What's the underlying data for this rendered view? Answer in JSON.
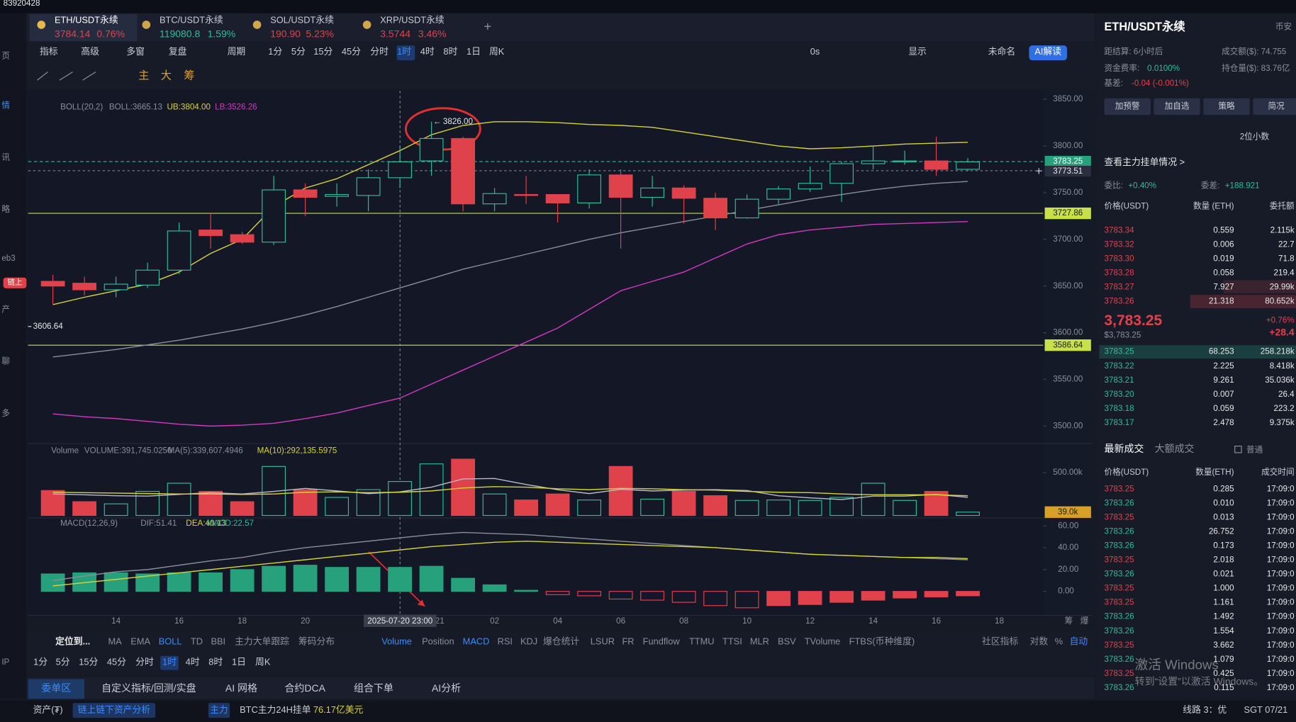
{
  "top_bar": {
    "account": "83920428"
  },
  "sidebar": [
    "页",
    "情",
    "讯",
    "略",
    "eb3",
    "产",
    "聊",
    "多",
    "IP"
  ],
  "sidebar_badge": "链上",
  "tabs": [
    {
      "name": "ETH/USDT永续",
      "price": "3784.14",
      "change": "0.76%"
    },
    {
      "name": "BTC/USDT永续",
      "price": "119080.8",
      "change": "1.59%"
    },
    {
      "name": "SOL/USDT永续",
      "price": "190.90",
      "change": "5.23%"
    },
    {
      "name": "XRP/USDT永续",
      "price": "3.5744",
      "change": "3.46%"
    }
  ],
  "toolbar": {
    "items": [
      "指标",
      "高级",
      "多窗",
      "复盘",
      "周期",
      "1分",
      "5分",
      "15分",
      "45分",
      "分时",
      "1时",
      "4时",
      "8时",
      "1日",
      "周K"
    ],
    "right": [
      "0s",
      "显示",
      "未命名",
      "AI解读"
    ]
  },
  "draw_tools": [
    "主",
    "大",
    "筹"
  ],
  "chart": {
    "type": "candlestick",
    "boll_label": {
      "name": "BOLL(20,2)",
      "mid": "BOLL:3665.13",
      "ub": "UB:3804.00",
      "lb": "LB:3526.26"
    },
    "volume_label": {
      "name": "Volume",
      "volume": "VOLUME:391,745.0250",
      "ma5": "MA(5):339,607.4946",
      "ma10": "MA(10):292,135.5975"
    },
    "macd_label": {
      "name": "MACD(12,26,9)",
      "dif": "DIF:51.41",
      "dea": "DEA:40.13",
      "macd": "MACD:22.57"
    },
    "categories": [
      null,
      null,
      "14",
      null,
      "16",
      null,
      "18",
      null,
      "20",
      null,
      null,
      null,
      "21",
      null,
      "02",
      null,
      "04",
      null,
      "06",
      null,
      "08",
      null,
      "10",
      null,
      "12",
      null,
      "14",
      null,
      "16",
      null,
      "18"
    ],
    "crosshair": "2025-07-20 23:00",
    "open": [
      3655,
      3653,
      3646,
      3651,
      3667,
      3710,
      3705,
      3697,
      3753,
      3746,
      3747,
      3766,
      3784,
      3808,
      3738,
      3748,
      3748,
      3739,
      3769,
      3745,
      3755,
      3744,
      3723,
      3743,
      3754,
      3760,
      3781,
      3783,
      3784,
      3775,
      null
    ],
    "high": [
      3662,
      3660,
      3660,
      3675,
      3718,
      3728,
      3708,
      3768,
      3760,
      3760,
      3775,
      3800,
      3826,
      3810,
      3755,
      3768,
      3748,
      3775,
      3775,
      3768,
      3758,
      3750,
      3748,
      3757,
      3778,
      3783,
      3800,
      3795,
      3810,
      3787,
      null
    ],
    "low": [
      3630,
      3640,
      3638,
      3648,
      3663,
      3690,
      3695,
      3694,
      3725,
      3735,
      3730,
      3755,
      3768,
      3730,
      3730,
      3738,
      3718,
      3733,
      3690,
      3735,
      3717,
      3710,
      3722,
      3738,
      3751,
      3740,
      3775,
      3780,
      3768,
      3773,
      null
    ],
    "close": [
      3650,
      3646,
      3652,
      3667,
      3709,
      3704,
      3697,
      3753,
      3745,
      3748,
      3766,
      3783,
      3808,
      3738,
      3749,
      3747,
      3739,
      3769,
      3745,
      3755,
      3744,
      3723,
      3743,
      3754,
      3760,
      3781,
      3784,
      3784,
      3775,
      3783,
      null
    ],
    "up_color": "#2ebd9b",
    "down_color": "#e0424b",
    "boll": [
      {
        "name": "UB",
        "color": "#d8d23a",
        "values": [
          3630,
          3638,
          3645,
          3652,
          3665,
          3685,
          3700,
          3735,
          3755,
          3765,
          3780,
          3795,
          3812,
          3822,
          3826,
          3826,
          3825,
          3823,
          3822,
          3820,
          3815,
          3810,
          3805,
          3800,
          3797,
          3798,
          3800,
          3802,
          3803,
          3804,
          null
        ]
      },
      {
        "name": "BOLL",
        "color": "#8a8f9c",
        "values": [
          3574,
          3578,
          3582,
          3587,
          3592,
          3598,
          3604,
          3611,
          3619,
          3628,
          3638,
          3648,
          3658,
          3668,
          3676,
          3684,
          3692,
          3700,
          3707,
          3713,
          3719,
          3725,
          3731,
          3737,
          3743,
          3748,
          3753,
          3757,
          3760,
          3762,
          null
        ]
      },
      {
        "name": "LB",
        "color": "#d23ac0",
        "values": [
          3513,
          3510,
          3508,
          3505,
          3502,
          3500,
          3501,
          3503,
          3508,
          3514,
          3522,
          3530,
          3545,
          3560,
          3575,
          3590,
          3605,
          3625,
          3645,
          3655,
          3665,
          3680,
          3695,
          3705,
          3710,
          3713,
          3716,
          3717,
          3718,
          3719,
          null
        ]
      }
    ],
    "ylim": [
      3483,
      3859
    ],
    "yticks": [
      {
        "value": 3850,
        "label": "3850.00"
      },
      {
        "value": 3800,
        "label": "3800.00"
      },
      {
        "value": 3750,
        "label": "3750.00"
      },
      {
        "value": 3700,
        "label": "3700.00"
      },
      {
        "value": 3650,
        "label": "3650.00"
      },
      {
        "value": 3600,
        "label": "3600.00"
      },
      {
        "value": 3550,
        "label": "3550.00"
      },
      {
        "value": 3500,
        "label": "3500.00"
      }
    ],
    "last_price": {
      "value": 3783.25,
      "label": "3783.25"
    },
    "cursor_price": {
      "value": 3773.51,
      "label": "3773.51"
    },
    "price_lines": [
      {
        "value": 3727.86,
        "label": "3727.86"
      },
      {
        "value": 3586.64,
        "label": "3586.64"
      }
    ],
    "high_marker": {
      "value": 3826,
      "label": "3826.00"
    },
    "low_marker": {
      "value": 3606.64,
      "label": "3606.64"
    },
    "volume": [
      290000,
      160000,
      135000,
      280000,
      375000,
      280000,
      160000,
      570000,
      300000,
      210000,
      300000,
      395000,
      600000,
      655000,
      250000,
      180000,
      250000,
      180000,
      570000,
      190000,
      280000,
      230000,
      175000,
      180000,
      175000,
      210000,
      375000,
      175000,
      280000,
      39000,
      null
    ],
    "volume_ma": [
      {
        "name": "MA(5)",
        "color": "#b8bcc6",
        "values": [
          250000,
          240000,
          230000,
          225000,
          245000,
          265000,
          250000,
          280000,
          315000,
          285000,
          255000,
          275000,
          330000,
          425000,
          430000,
          360000,
          300000,
          255000,
          305000,
          285000,
          295000,
          300000,
          290000,
          230000,
          205000,
          185000,
          225000,
          225000,
          245000,
          210000,
          null
        ]
      },
      {
        "name": "MA(10)",
        "color": "#d8d23a",
        "values": [
          270000,
          265000,
          260000,
          255000,
          250000,
          250000,
          245000,
          250000,
          270000,
          275000,
          265000,
          270000,
          285000,
          320000,
          335000,
          330000,
          310000,
          300000,
          315000,
          310000,
          300000,
          295000,
          280000,
          270000,
          265000,
          250000,
          240000,
          240000,
          240000,
          230000,
          null
        ]
      }
    ],
    "vlim": [
      0,
      807000
    ],
    "vticks": [
      {
        "value": 500000,
        "label": "500.00k"
      }
    ],
    "volume_tag": {
      "value": 39000,
      "label": "39.0k"
    },
    "macd": [
      16,
      17,
      17,
      16,
      17,
      17,
      20,
      23,
      24,
      22,
      22,
      22,
      23,
      12,
      6,
      1,
      -3,
      -4,
      -7,
      -8,
      -10,
      -13,
      -15,
      -13,
      -12,
      -10,
      -8,
      -6,
      -5,
      -4,
      null
    ],
    "macd_lines": [
      {
        "name": "DIF",
        "color": "#8a8f9c",
        "values": [
          10,
          14,
          18,
          20,
          24,
          28,
          31,
          36,
          40,
          43,
          46,
          49,
          52,
          54,
          53,
          52,
          50,
          48,
          46,
          44,
          42,
          40,
          38,
          36,
          34,
          33,
          32,
          31,
          30,
          29,
          null
        ]
      },
      {
        "name": "DEA",
        "color": "#d8d23a",
        "values": [
          5,
          8,
          11,
          14,
          17,
          20,
          23,
          26,
          29,
          32,
          35,
          38,
          41,
          43,
          45,
          46,
          45,
          44,
          43,
          42,
          41,
          40,
          38,
          36,
          34,
          33,
          32,
          31,
          31,
          30,
          null
        ]
      }
    ],
    "mlim": [
      -22,
      65
    ],
    "mticks": [
      {
        "value": 60,
        "label": "60.00"
      },
      {
        "value": 40,
        "label": "40.00"
      },
      {
        "value": 20,
        "label": "20.00"
      },
      {
        "value": 0,
        "label": "0.00"
      }
    ],
    "axis_corner": [
      "筹",
      "爆"
    ]
  },
  "indicator_bar": {
    "locate": "定位到...",
    "main": [
      "MA",
      "EMA",
      "BOLL",
      "TD",
      "BBI",
      "主力大单跟踪",
      "筹码分布"
    ],
    "sub": [
      "Volume",
      "Position",
      "MACD",
      "RSI",
      "KDJ",
      "爆仓统计",
      "LSUR",
      "FR",
      "Fundflow",
      "TTMU",
      "TTSI",
      "MLR",
      "BSV",
      "TVolume",
      "FTBS(币种维度)"
    ],
    "right": [
      "社区指标",
      "对数",
      "%",
      "自动"
    ]
  },
  "periods": [
    "1分",
    "5分",
    "15分",
    "45分",
    "分时",
    "1时",
    "4时",
    "8时",
    "1日",
    "周K"
  ],
  "bottom_tabs": [
    "委单区",
    "自定义指标/回测/实盘",
    "AI 网格",
    "合约DCA",
    "组合下单",
    "AI分析"
  ],
  "status": {
    "assets": "资产(₮)",
    "analysis": "链上链下资产分析",
    "main_tag": "主力",
    "btc_label": "BTC主力24H挂单",
    "btc_value": "76.17亿美元",
    "line": "线路 3：优",
    "time": "SGT 07/21"
  },
  "side_panel": {
    "title": "ETH/USDT永续",
    "exchange": "币安",
    "settle": "距结算: 6小时后",
    "turnover": "成交额($): 74.755",
    "funding_label": "资金费率:",
    "funding": "0.0100%",
    "oi": "持仓量($): 83.76亿",
    "basis_label": "基差:",
    "basis": "-0.04 (-0.001%)",
    "buttons": [
      "加预警",
      "加自选",
      "策略",
      "简况"
    ],
    "decimals": "2位小数",
    "whale": "查看主力挂单情况 >",
    "ratio_label": "委比:",
    "ratio": "+0.40%",
    "diff_label": "委差:",
    "diff": "+188.921",
    "book_headers": [
      "价格(USDT)",
      "数量 (ETH)",
      "委托额"
    ],
    "asks": [
      [
        "3783.34",
        "0.559",
        "2.115k"
      ],
      [
        "3783.32",
        "0.006",
        "22.7"
      ],
      [
        "3783.30",
        "0.019",
        "71.8"
      ],
      [
        "3783.28",
        "0.058",
        "219.4"
      ],
      [
        "3783.27",
        "7.927",
        "29.99k"
      ],
      [
        "3783.26",
        "21.318",
        "80.652k"
      ]
    ],
    "mid": "3,783.25",
    "mid_usd": "$3,783.25",
    "mid_change": "+0.76%",
    "mid_delta": "+28.4",
    "bids": [
      [
        "3783.25",
        "68.253",
        "258.218k"
      ],
      [
        "3783.22",
        "2.225",
        "8.418k"
      ],
      [
        "3783.21",
        "9.261",
        "35.036k"
      ],
      [
        "3783.20",
        "0.007",
        "26.4"
      ],
      [
        "3783.18",
        "0.059",
        "223.2"
      ],
      [
        "3783.17",
        "2.478",
        "9.375k"
      ]
    ],
    "trade_tabs": [
      "最新成交",
      "大额成交"
    ],
    "normal": "普通",
    "trade_headers": [
      "价格(USDT)",
      "数量(ETH)",
      "成交时间"
    ],
    "trades": [
      [
        "3783.25",
        "0.285",
        "17:09:0"
      ],
      [
        "3783.26",
        "0.010",
        "17:09:0"
      ],
      [
        "3783.25",
        "0.013",
        "17:09:0"
      ],
      [
        "3783.26",
        "26.752",
        "17:09:0"
      ],
      [
        "3783.26",
        "0.173",
        "17:09:0"
      ],
      [
        "3783.25",
        "2.018",
        "17:09:0"
      ],
      [
        "3783.26",
        "0.021",
        "17:09:0"
      ],
      [
        "3783.25",
        "1.000",
        "17:09:0"
      ],
      [
        "3783.25",
        "1.161",
        "17:09:0"
      ],
      [
        "3783.26",
        "1.492",
        "17:09:0"
      ],
      [
        "3783.26",
        "1.554",
        "17:09:0"
      ],
      [
        "3783.25",
        "3.662",
        "17:09:0"
      ],
      [
        "3783.26",
        "1.079",
        "17:09:0"
      ],
      [
        "3783.25",
        "0.425",
        "17:09:0"
      ],
      [
        "3783.26",
        "0.115",
        "17:09:0"
      ]
    ],
    "trade_colors": [
      "#e0424b",
      "#2ebd9b",
      "#e0424b",
      "#2ebd9b",
      "#2ebd9b",
      "#e0424b",
      "#2ebd9b",
      "#e0424b",
      "#e0424b",
      "#2ebd9b",
      "#2ebd9b",
      "#e0424b",
      "#2ebd9b",
      "#e0424b",
      "#2ebd9b"
    ]
  },
  "watermark": {
    "title": "激活 Windows",
    "hint": "转到“设置”以激活 Windows。"
  }
}
